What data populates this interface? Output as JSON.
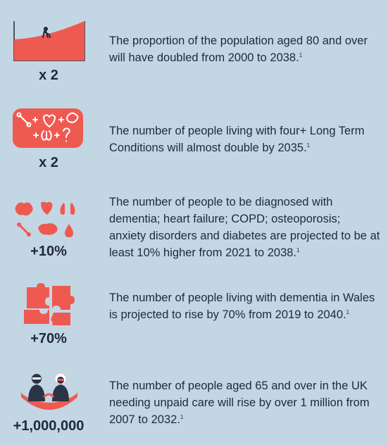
{
  "colors": {
    "background": "#c3d6e3",
    "accent": "#ee5a50",
    "text": "#1f2a3a"
  },
  "stats": [
    {
      "value": "x 2",
      "icon": "rising-area-graph-icon",
      "text": "The proportion of the population aged 80 and over will have doubled from 2000 to 2038.",
      "ref": "1"
    },
    {
      "value": "x 2",
      "icon": "multiple-conditions-icon",
      "text": "The number of people living with four+ Long Term Conditions will almost double by 2035.",
      "ref": "1"
    },
    {
      "value": "+10%",
      "icon": "organs-group-icon",
      "text": "The number of people to be diagnosed with dementia; heart failure; COPD; osteoporosis; anxiety disorders and diabetes are projected to be at least 10% higher from 2021 to 2038.",
      "ref": "1"
    },
    {
      "value": "+70%",
      "icon": "broken-brain-puzzle-icon",
      "text": "The number of people living with dementia in Wales is projected to rise by 70% from 2019 to 2040.",
      "ref": "1"
    },
    {
      "value": "+1,000,000",
      "icon": "elderly-couple-icon",
      "text": "The number of people aged 65 and over in the UK needing unpaid care will rise by over 1 million from 2007 to 2032.",
      "ref": "1"
    }
  ]
}
